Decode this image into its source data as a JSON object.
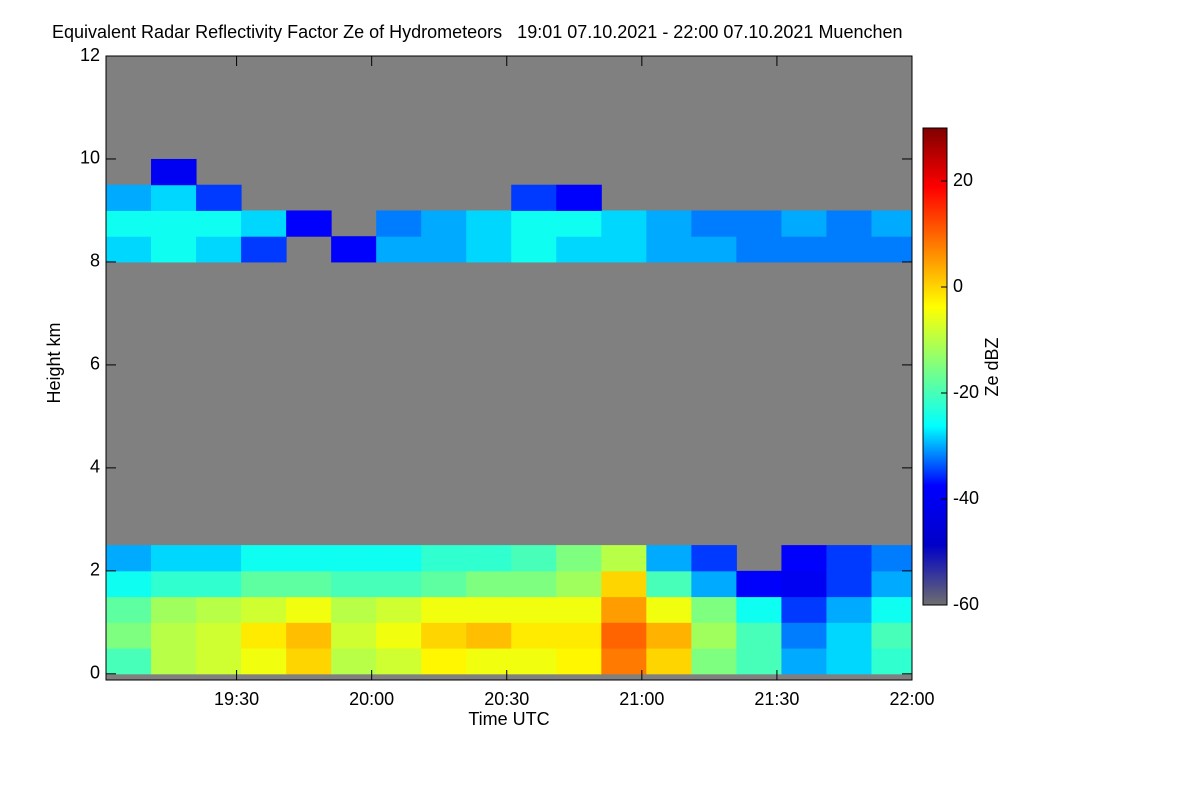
{
  "chart_data": {
    "type": "heatmap",
    "title": "Equivalent Radar Reflectivity Factor Ze of Hydrometeors   19:01 07.10.2021 - 22:00 07.10.2021 Muenchen",
    "x_label": "Time UTC",
    "y_label": "Height km",
    "colorbar_label": "Ze dBZ",
    "xlim": [
      1141,
      1320
    ],
    "xticks": [
      {
        "value": 1170,
        "label": "19:30"
      },
      {
        "value": 1200,
        "label": "20:00"
      },
      {
        "value": 1230,
        "label": "20:30"
      },
      {
        "value": 1260,
        "label": "21:00"
      },
      {
        "value": 1290,
        "label": "21:30"
      },
      {
        "value": 1320,
        "label": "22:00"
      }
    ],
    "ylim": [
      -0.12,
      12
    ],
    "yticks": [
      0,
      2,
      4,
      6,
      8,
      10,
      12
    ],
    "zlim": [
      -60,
      30
    ],
    "zticks": [
      -60,
      -40,
      -20,
      0,
      20
    ],
    "colors": [
      "#6e6e6e",
      "#0000c8",
      "#0000ff",
      "#00ffff",
      "#7fff7f",
      "#ffff00",
      "#ff8000",
      "#ff0000",
      "#800000"
    ],
    "background": "#808080",
    "x": [
      1146,
      1156,
      1166,
      1176,
      1186,
      1196,
      1206,
      1216,
      1226,
      1236,
      1246,
      1256,
      1266,
      1276,
      1286,
      1296,
      1306,
      1316
    ],
    "y": [
      0.25,
      0.75,
      1.25,
      1.75,
      2.25,
      2.75,
      3.25,
      3.75,
      4.25,
      4.75,
      5.25,
      5.75,
      6.25,
      6.75,
      7.25,
      7.75,
      8.25,
      8.75,
      9.25,
      9.75,
      10.25,
      10.75,
      11.25,
      11.75
    ],
    "z": [
      [
        -20,
        -10,
        -8,
        -5,
        0,
        -10,
        -8,
        -3,
        -5,
        -5,
        -3,
        8,
        0,
        -15,
        -20,
        -30,
        -28,
        -22
      ],
      [
        -15,
        -10,
        -8,
        -2,
        2,
        -8,
        -5,
        0,
        2,
        -2,
        -2,
        10,
        3,
        -12,
        -20,
        -32,
        -28,
        -20
      ],
      [
        -18,
        -12,
        -10,
        -8,
        -5,
        -10,
        -8,
        -5,
        -5,
        -5,
        -5,
        5,
        -5,
        -15,
        -25,
        -35,
        -30,
        -25
      ],
      [
        -25,
        -22,
        -22,
        -18,
        -18,
        -20,
        -20,
        -18,
        -15,
        -15,
        -12,
        0,
        -20,
        -30,
        -38,
        -40,
        -35,
        -30
      ],
      [
        -30,
        -28,
        -28,
        -25,
        -25,
        -25,
        -25,
        -22,
        -22,
        -20,
        -15,
        -10,
        -30,
        -35,
        null,
        -38,
        -35,
        -32
      ],
      [
        null,
        null,
        null,
        null,
        null,
        null,
        null,
        null,
        null,
        null,
        null,
        null,
        null,
        null,
        null,
        null,
        null,
        null
      ],
      [
        null,
        null,
        null,
        null,
        null,
        null,
        null,
        null,
        null,
        null,
        null,
        null,
        null,
        null,
        null,
        null,
        null,
        null
      ],
      [
        null,
        null,
        null,
        null,
        null,
        null,
        null,
        null,
        null,
        null,
        null,
        null,
        null,
        null,
        null,
        null,
        null,
        null
      ],
      [
        null,
        null,
        null,
        null,
        null,
        null,
        null,
        null,
        null,
        null,
        null,
        null,
        null,
        null,
        null,
        null,
        null,
        null
      ],
      [
        null,
        null,
        null,
        null,
        null,
        null,
        null,
        null,
        null,
        null,
        null,
        null,
        null,
        null,
        null,
        null,
        null,
        null
      ],
      [
        null,
        null,
        null,
        null,
        null,
        null,
        null,
        null,
        null,
        null,
        null,
        null,
        null,
        null,
        null,
        null,
        null,
        null
      ],
      [
        null,
        null,
        null,
        null,
        null,
        null,
        null,
        null,
        null,
        null,
        null,
        null,
        null,
        null,
        null,
        null,
        null,
        null
      ],
      [
        null,
        null,
        null,
        null,
        null,
        null,
        null,
        null,
        null,
        null,
        null,
        null,
        null,
        null,
        null,
        null,
        null,
        null
      ],
      [
        null,
        null,
        null,
        null,
        null,
        null,
        null,
        null,
        null,
        null,
        null,
        null,
        null,
        null,
        null,
        null,
        null,
        null
      ],
      [
        null,
        null,
        null,
        null,
        null,
        null,
        null,
        null,
        null,
        null,
        null,
        null,
        null,
        null,
        null,
        null,
        null,
        null
      ],
      [
        null,
        null,
        null,
        null,
        null,
        null,
        null,
        null,
        null,
        null,
        null,
        null,
        null,
        null,
        null,
        null,
        null,
        null
      ],
      [
        -28,
        -25,
        -28,
        -35,
        null,
        -38,
        -30,
        -30,
        -28,
        -25,
        -28,
        -28,
        -30,
        -30,
        -32,
        -32,
        -32,
        -32
      ],
      [
        -25,
        -25,
        -25,
        -28,
        -38,
        null,
        -32,
        -30,
        -28,
        -25,
        -25,
        -28,
        -30,
        -32,
        -32,
        -30,
        -32,
        -30
      ],
      [
        -30,
        -28,
        -35,
        null,
        null,
        null,
        null,
        null,
        null,
        -35,
        -38,
        null,
        null,
        null,
        null,
        null,
        null,
        null
      ],
      [
        null,
        -40,
        null,
        null,
        null,
        null,
        null,
        null,
        null,
        null,
        null,
        null,
        null,
        null,
        null,
        null,
        null,
        null
      ],
      [
        null,
        null,
        null,
        null,
        null,
        null,
        null,
        null,
        null,
        null,
        null,
        null,
        null,
        null,
        null,
        null,
        null,
        null
      ],
      [
        null,
        null,
        null,
        null,
        null,
        null,
        null,
        null,
        null,
        null,
        null,
        null,
        null,
        null,
        null,
        null,
        null,
        null
      ],
      [
        null,
        null,
        null,
        null,
        null,
        null,
        null,
        null,
        null,
        null,
        null,
        null,
        null,
        null,
        null,
        null,
        null,
        null
      ],
      [
        null,
        null,
        null,
        null,
        null,
        null,
        null,
        null,
        null,
        null,
        null,
        null,
        null,
        null,
        null,
        null,
        null,
        null
      ]
    ]
  }
}
